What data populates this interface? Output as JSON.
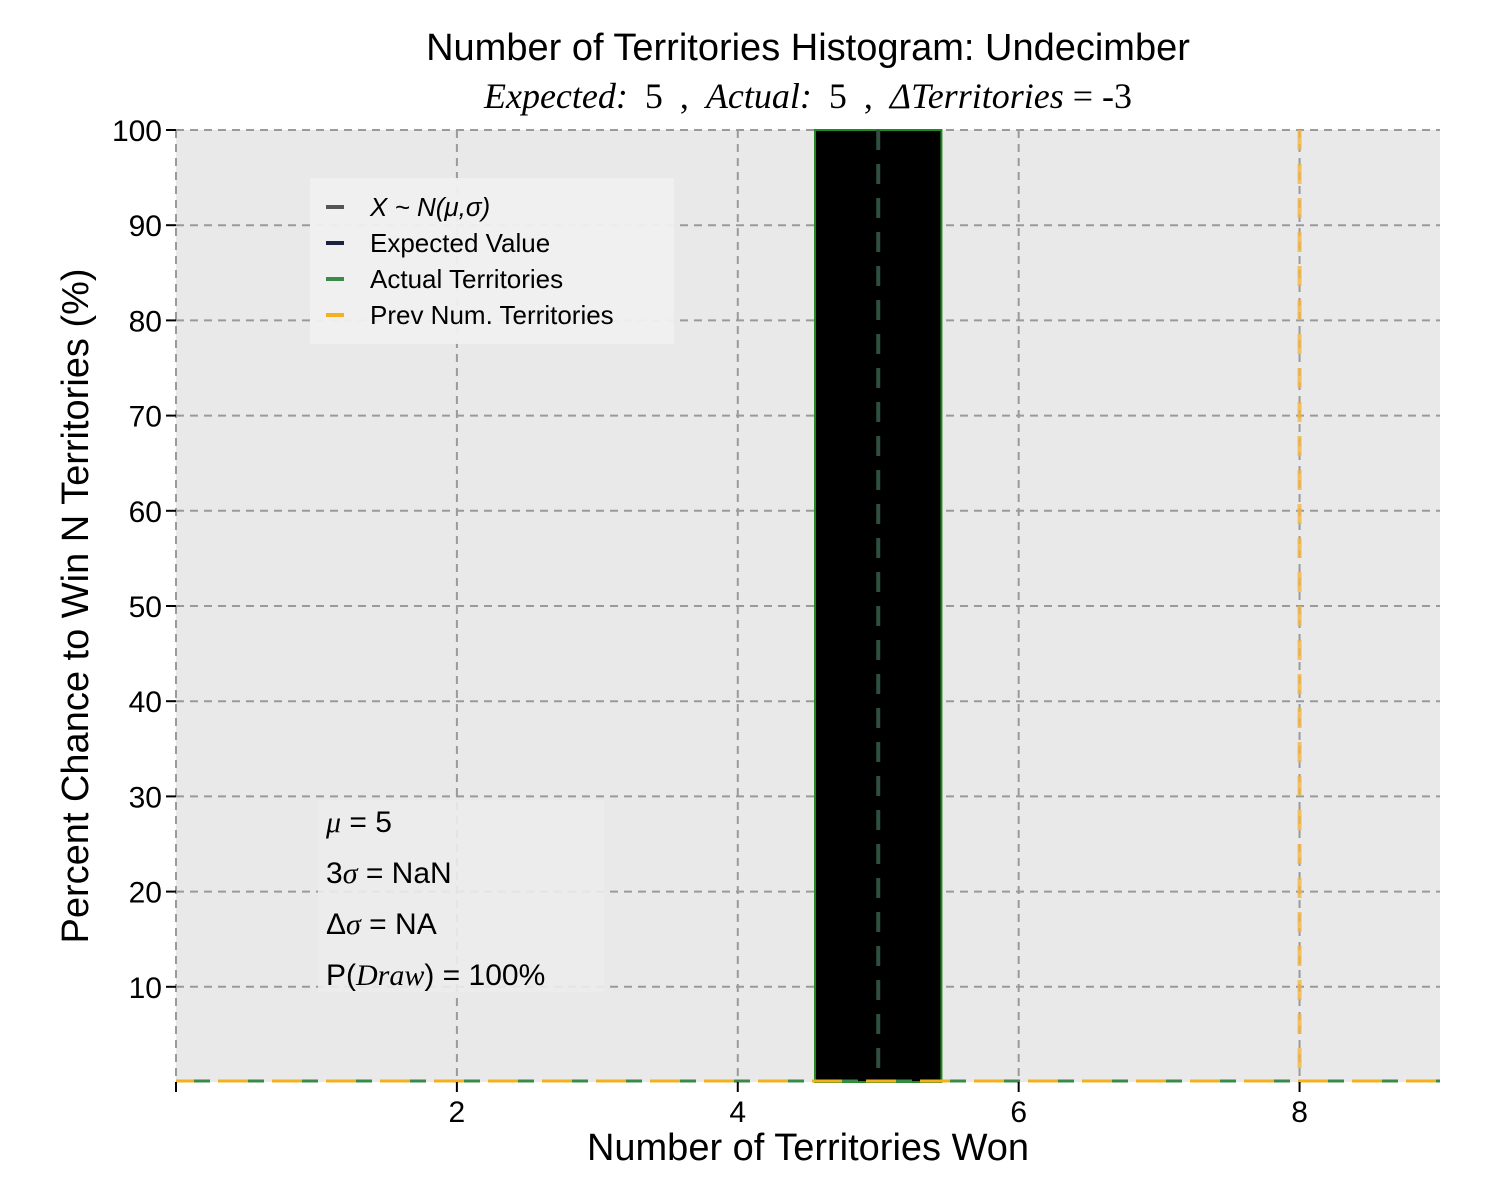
{
  "chart_data": {
    "type": "bar",
    "title": "Number of Territories Histogram: Undecimber",
    "subtitle": {
      "expected_label": "Expected:",
      "expected_value": "5",
      "actual_label": "Actual:",
      "actual_value": "5",
      "delta_label": "ΔTerritories",
      "delta_value": "= -3",
      "sep": ","
    },
    "xlabel": "Number of Territories Won",
    "ylabel": "Percent Chance to Win N Territories (%)",
    "xlim": [
      0,
      9
    ],
    "ylim": [
      0,
      100
    ],
    "xticks": [
      2,
      4,
      6,
      8
    ],
    "yticks": [
      10,
      20,
      30,
      40,
      50,
      60,
      70,
      80,
      90,
      100
    ],
    "grid": true,
    "bars": [
      {
        "x": 5,
        "width": 0.9,
        "value": 100
      }
    ],
    "reference_lines": [
      {
        "name": "Expected Value",
        "x": 5,
        "color": "#2f4f3f"
      },
      {
        "name": "Prev Num. Territories",
        "x": 8,
        "color": "#f5b642"
      }
    ],
    "legend": {
      "placement": "upper-left",
      "entries": [
        {
          "label": "X ~ N(μ,σ)",
          "color": "#555555",
          "italic": true
        },
        {
          "label": "Expected Value",
          "color": "#1a2340",
          "italic": false
        },
        {
          "label": "Actual Territories",
          "color": "#3a8a4a",
          "italic": false
        },
        {
          "label": "Prev Num. Territories",
          "color": "#f5b020",
          "italic": false
        }
      ]
    },
    "stats": {
      "mu": {
        "sym": "μ",
        "text": " = 5"
      },
      "three_sigma": {
        "pre": "3",
        "sym": "σ",
        "text": " = NaN"
      },
      "delta_sigma": {
        "pre": "Δ",
        "sym": "σ",
        "text": " = NA"
      },
      "p_draw": {
        "pre": "P(",
        "sym": "Draw",
        "text": ") = 100%"
      }
    },
    "colors": {
      "plot_bg": "#e9e9e9",
      "bar_fill": "#000000",
      "bar_edge": "#1f8a1f",
      "grid": "#9a9a9a",
      "baseline_actual": "#3a8a4a",
      "baseline_prev": "#f5b020"
    }
  }
}
